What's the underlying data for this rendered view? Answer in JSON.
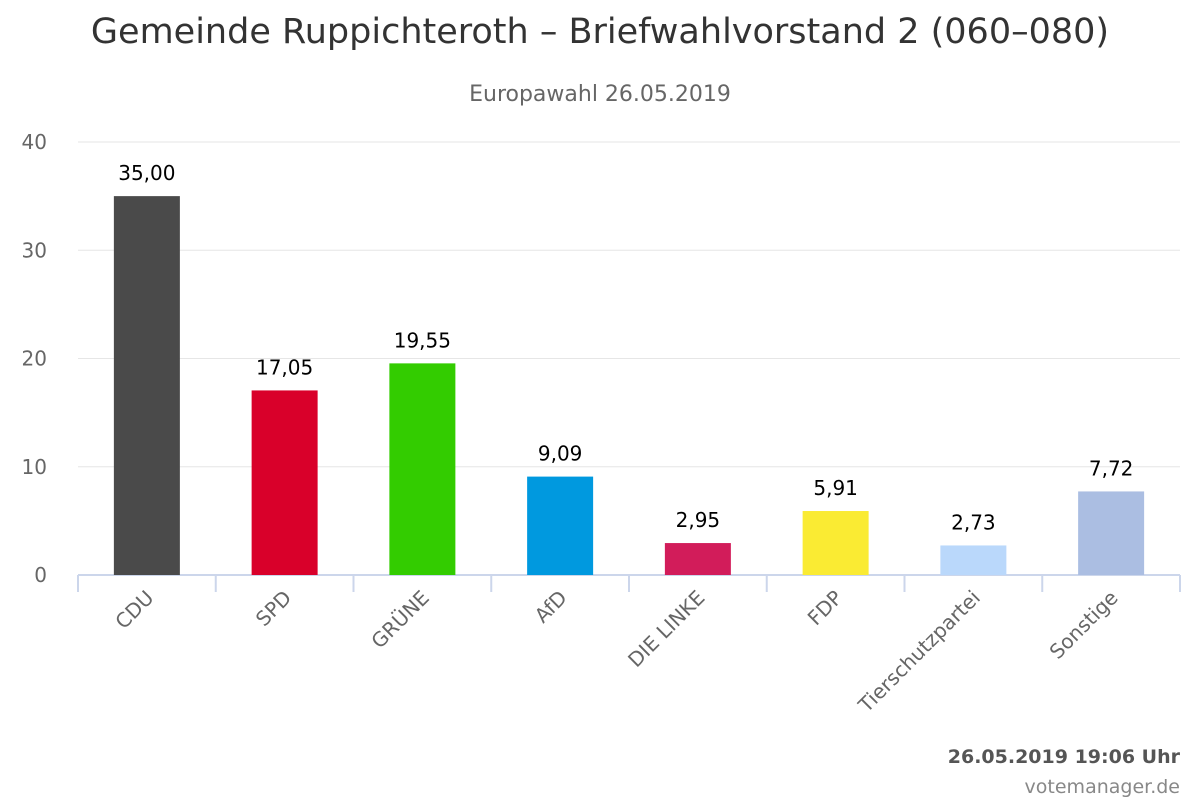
{
  "chart_data": {
    "type": "bar",
    "title": "Gemeinde Ruppichteroth – Briefwahlvorstand 2 (060–080)",
    "subtitle": "Europawahl 26.05.2019",
    "categories": [
      "CDU",
      "SPD",
      "GRÜNE",
      "AfD",
      "DIE LINKE",
      "FDP",
      "Tierschutzpartei",
      "Sonstige"
    ],
    "values": [
      35.0,
      17.05,
      19.55,
      9.09,
      2.95,
      5.91,
      2.73,
      7.72
    ],
    "value_labels": [
      "35,00",
      "17,05",
      "19,55",
      "9,09",
      "2,95",
      "5,91",
      "2,73",
      "7,72"
    ],
    "colors": [
      "#4a4a4a",
      "#d9002a",
      "#33cc00",
      "#0099df",
      "#d21c5a",
      "#faeb33",
      "#bad8fb",
      "#abbee2"
    ],
    "ylim": [
      0,
      40
    ],
    "yticks": [
      0,
      10,
      20,
      30,
      40
    ],
    "grid": true,
    "legend": "none"
  },
  "footer": {
    "timestamp": "26.05.2019 19:06 Uhr",
    "credit": "votemanager.de"
  }
}
